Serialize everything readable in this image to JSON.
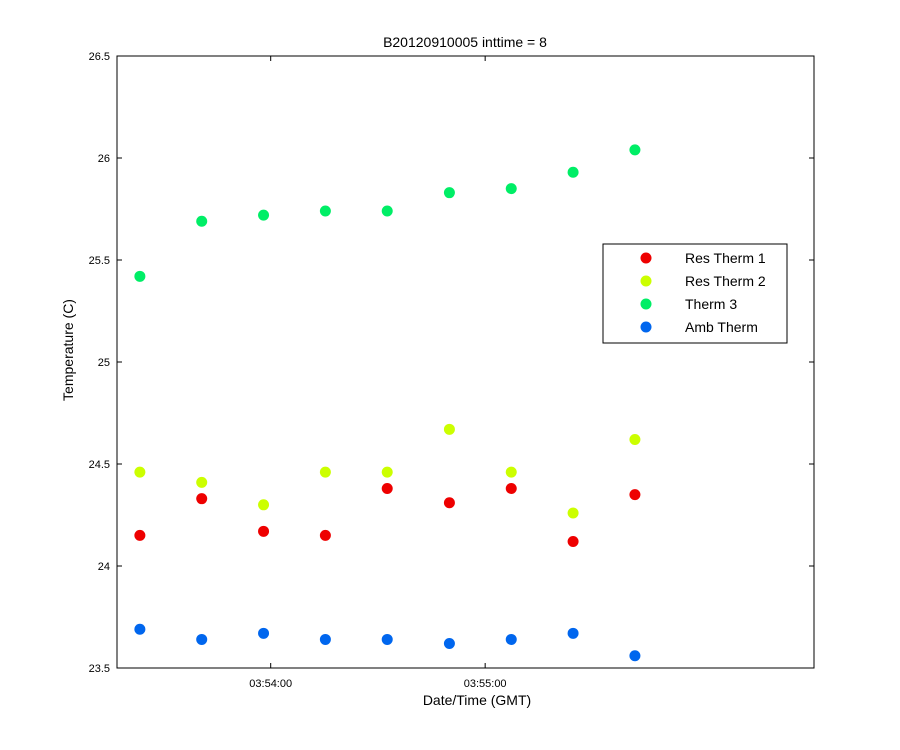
{
  "chart_data": {
    "type": "scatter",
    "title": "B20120910005 inttime = 8",
    "xlabel": "Date/Time (GMT)",
    "ylabel": "Temperature (C)",
    "x_unit": "seconds after 03:53:00 GMT",
    "xlim": [
      17,
      212
    ],
    "ylim": [
      23.5,
      26.5
    ],
    "yticks": [
      23.5,
      24,
      24.5,
      25,
      25.5,
      26,
      26.5
    ],
    "yticklabels": [
      "23.5",
      "24",
      "24.5",
      "25",
      "25.5",
      "26",
      "26.5"
    ],
    "xticks": [
      60,
      120
    ],
    "xticklabels": [
      "03:54:00",
      "03:55:00"
    ],
    "grid": false,
    "legend_position": "right",
    "x": [
      23.4,
      40.7,
      58,
      75.3,
      92.6,
      110,
      127.3,
      144.6,
      161.9
    ],
    "series": [
      {
        "name": "Res Therm 1",
        "color": "#ee0000",
        "values": [
          24.15,
          24.33,
          24.17,
          24.15,
          24.38,
          24.31,
          24.38,
          24.12,
          24.35
        ]
      },
      {
        "name": "Res Therm 2",
        "color": "#ccff00",
        "values": [
          24.46,
          24.41,
          24.3,
          24.46,
          24.46,
          24.67,
          24.46,
          24.26,
          24.62
        ]
      },
      {
        "name": "Therm 3",
        "color": "#00ee66",
        "values": [
          25.42,
          25.69,
          25.72,
          25.74,
          25.74,
          25.83,
          25.85,
          25.93,
          26.04
        ]
      },
      {
        "name": "Amb Therm",
        "color": "#0066ee",
        "values": [
          23.69,
          23.64,
          23.67,
          23.64,
          23.64,
          23.62,
          23.64,
          23.67,
          23.56
        ]
      }
    ]
  }
}
